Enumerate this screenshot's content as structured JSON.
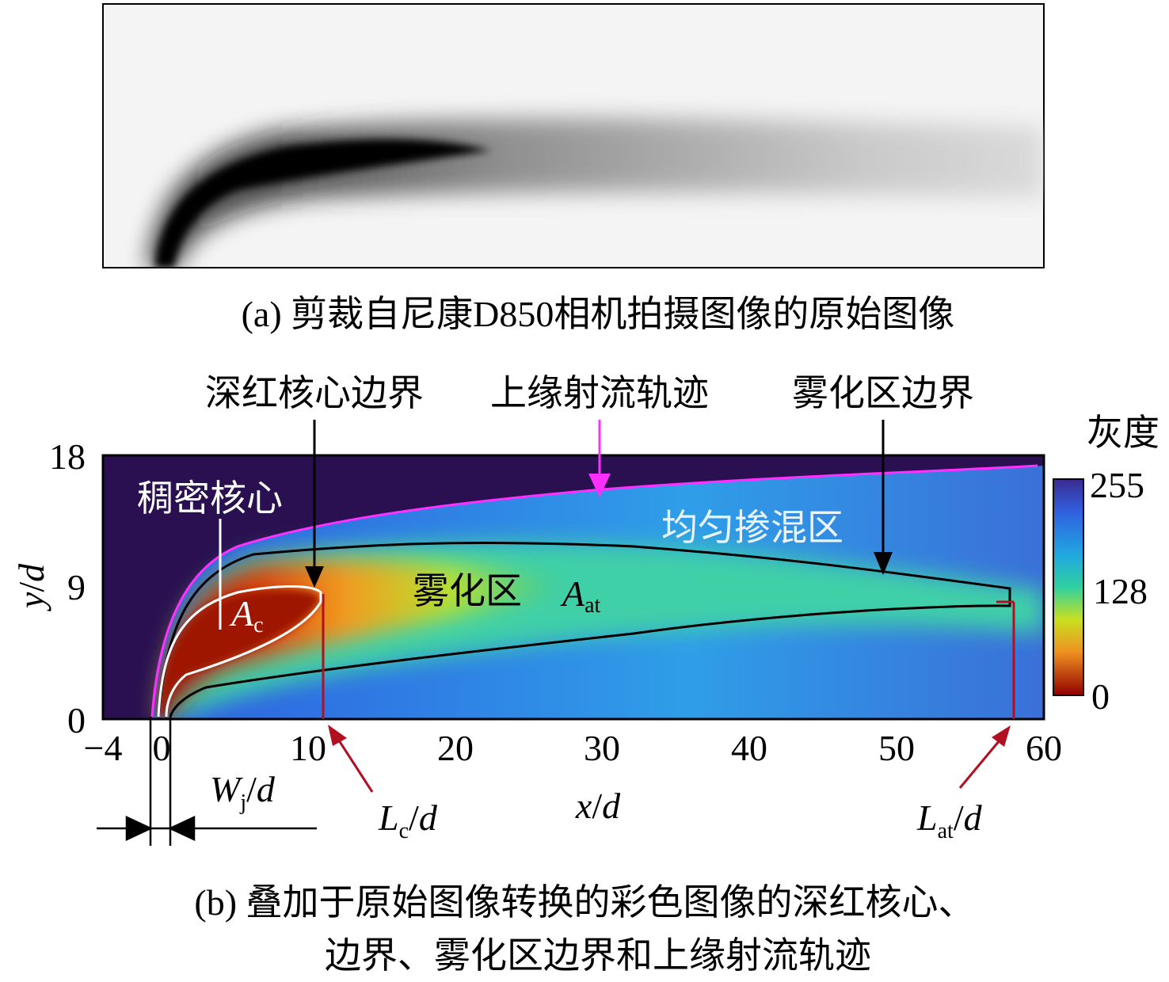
{
  "panel_a": {
    "caption": "(a) 剪裁自尼康D850相机拍摄图像的原始图像"
  },
  "panel_b": {
    "callouts": [
      "深红核心边界",
      "上缘射流轨迹",
      "雾化区边界"
    ],
    "regions": [
      "稠密核心",
      "均匀掺混区",
      "雾化区"
    ],
    "A_c": {
      "main": "A",
      "sub": "c"
    },
    "A_at": {
      "main": "A",
      "sub": "at"
    },
    "colorbar": {
      "title": "灰度",
      "ticks": [
        "255",
        "128",
        "0"
      ]
    },
    "xticks": [
      "−4",
      "0",
      "10",
      "20",
      "30",
      "40",
      "50",
      "60"
    ],
    "yticks": [
      "18",
      "9",
      "0"
    ],
    "xlabel": {
      "main": "x",
      "rest": "/",
      "end": "d"
    },
    "ylabel": {
      "main": "y",
      "rest": "/",
      "end": "d"
    },
    "W_j": {
      "main": "W",
      "sub": "j",
      "rest": "/",
      "end": "d"
    },
    "L_c": {
      "main": "L",
      "sub": "c",
      "rest": "/",
      "end": "d"
    },
    "L_at": {
      "main": "L",
      "sub": "at",
      "rest": "/",
      "end": "d"
    },
    "caption": [
      "(b) 叠加于原始图像转换的彩色图像的深红核心、",
      "边界、雾化区边界和上缘射流轨迹"
    ]
  }
}
